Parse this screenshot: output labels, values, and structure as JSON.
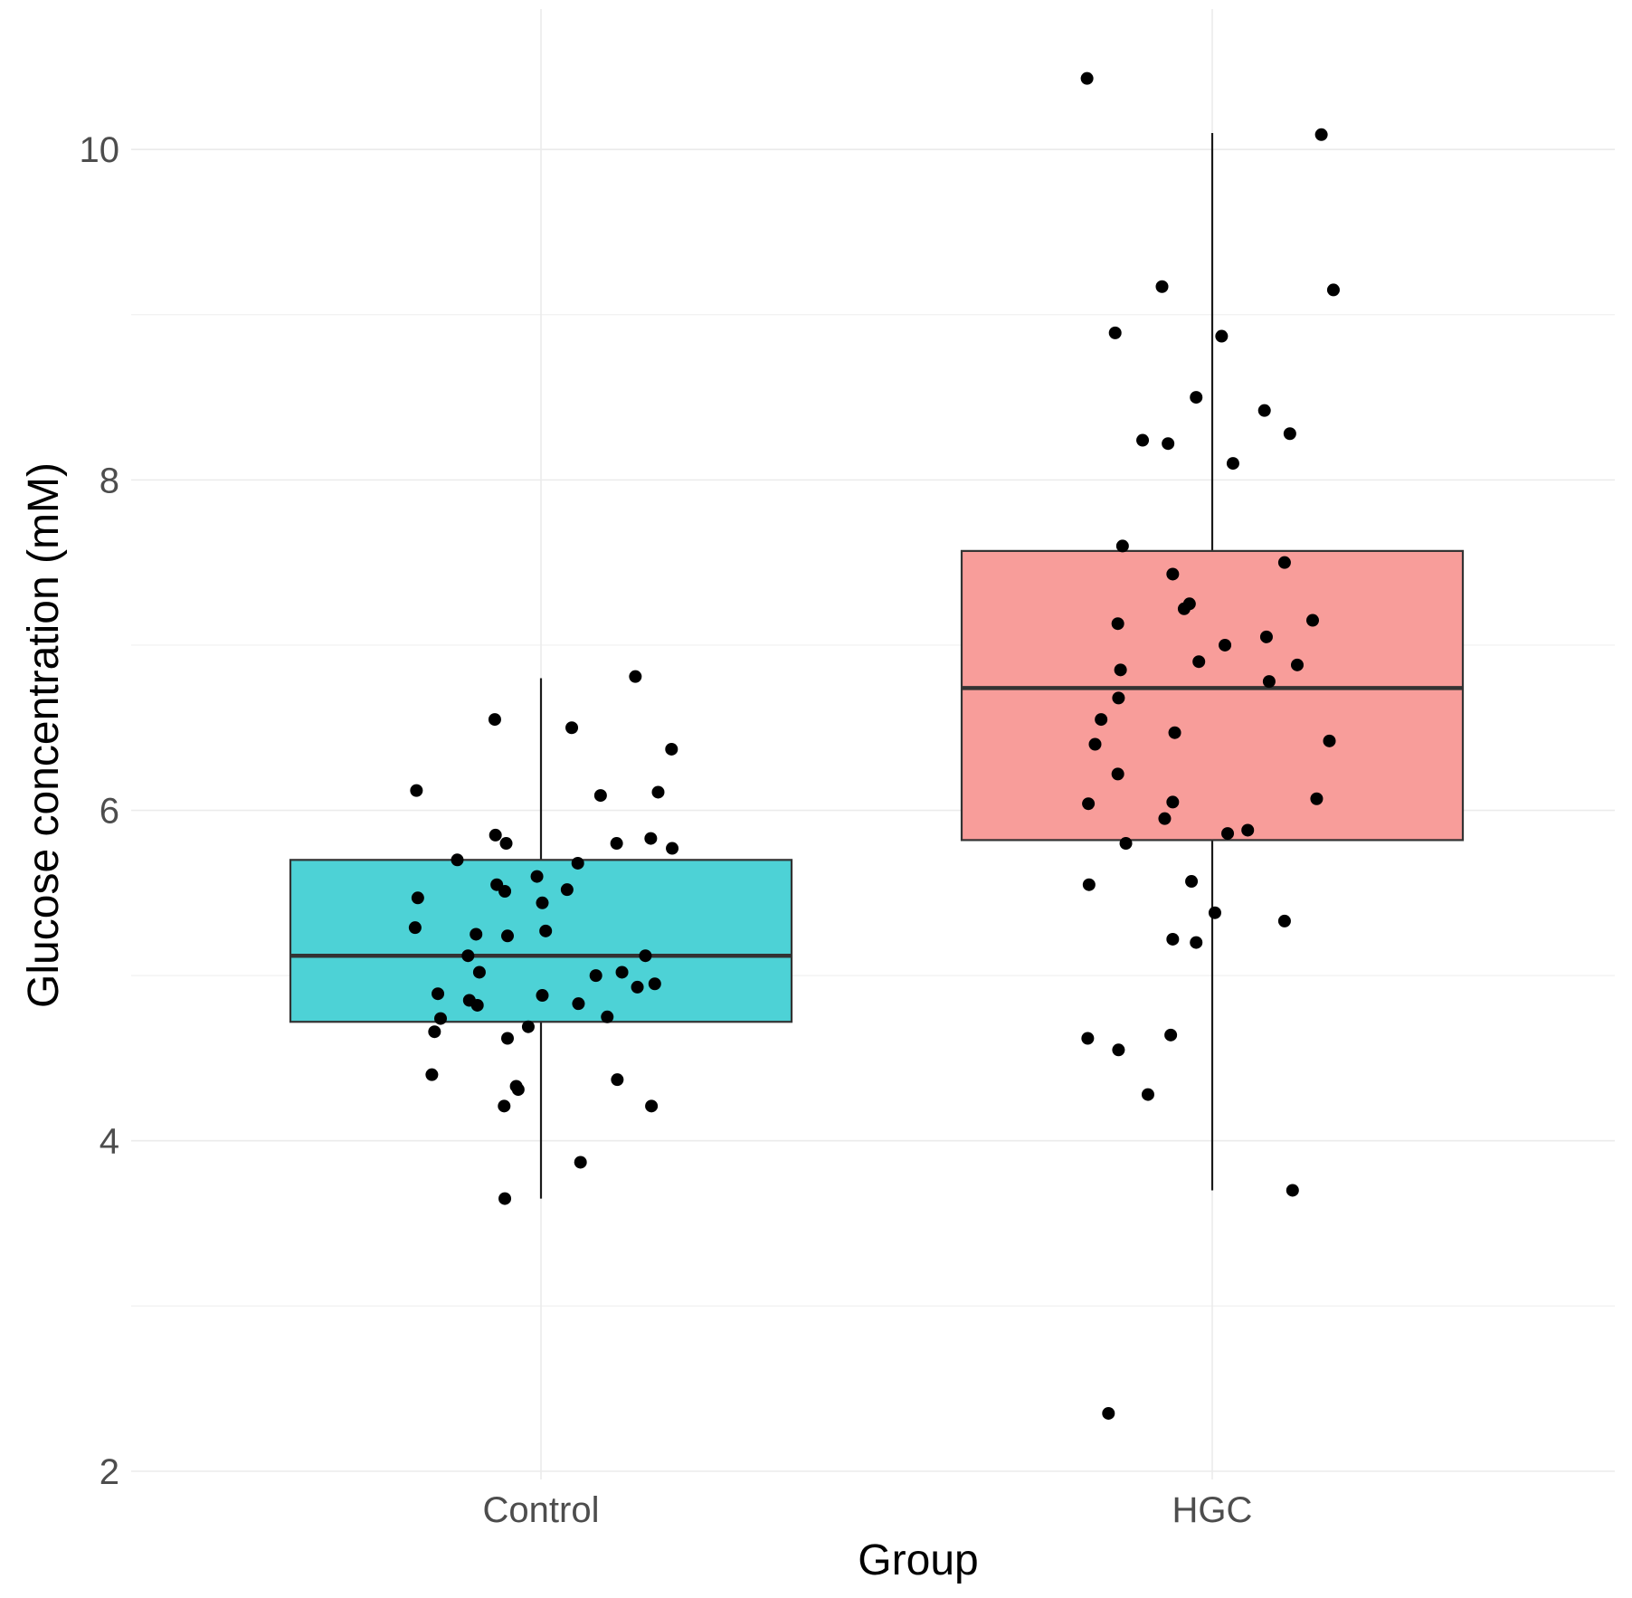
{
  "chart_data": {
    "type": "box",
    "title": "",
    "xlabel": "Group",
    "ylabel": "Glucose concentration (mM)",
    "ylim": [
      1.95,
      10.85
    ],
    "yticks": [
      2,
      4,
      6,
      8,
      10
    ],
    "categories": [
      "Control",
      "HGC"
    ],
    "colors": {
      "Control": "#4dd2d6",
      "HGC": "#f89d9a"
    },
    "boxes": [
      {
        "group": "Control",
        "whisker_low": 3.65,
        "q1": 4.72,
        "median": 5.12,
        "q3": 5.7,
        "whisker_high": 6.8
      },
      {
        "group": "HGC",
        "whisker_low": 3.7,
        "q1": 5.82,
        "median": 6.74,
        "q3": 7.57,
        "whisker_high": 10.1
      }
    ],
    "points": {
      "Control": [
        {
          "x": -0.186,
          "y": 6.12
        },
        {
          "x": -0.184,
          "y": 5.47
        },
        {
          "x": -0.188,
          "y": 5.29
        },
        {
          "x": -0.159,
          "y": 4.66
        },
        {
          "x": -0.163,
          "y": 4.4
        },
        {
          "x": -0.154,
          "y": 4.89
        },
        {
          "x": -0.15,
          "y": 4.74
        },
        {
          "x": -0.125,
          "y": 5.7
        },
        {
          "x": -0.109,
          "y": 5.12
        },
        {
          "x": -0.107,
          "y": 4.85
        },
        {
          "x": -0.097,
          "y": 5.25
        },
        {
          "x": -0.092,
          "y": 5.02
        },
        {
          "x": -0.095,
          "y": 4.82
        },
        {
          "x": -0.069,
          "y": 6.55
        },
        {
          "x": -0.068,
          "y": 5.85
        },
        {
          "x": -0.066,
          "y": 5.55
        },
        {
          "x": -0.052,
          "y": 5.8
        },
        {
          "x": -0.054,
          "y": 5.51
        },
        {
          "x": -0.05,
          "y": 5.24
        },
        {
          "x": -0.05,
          "y": 4.62
        },
        {
          "x": -0.055,
          "y": 4.21
        },
        {
          "x": -0.054,
          "y": 3.65
        },
        {
          "x": -0.037,
          "y": 4.33
        },
        {
          "x": -0.034,
          "y": 4.31
        },
        {
          "x": -0.019,
          "y": 4.69
        },
        {
          "x": -0.006,
          "y": 5.6
        },
        {
          "x": 0.002,
          "y": 5.44
        },
        {
          "x": 0.002,
          "y": 4.88
        },
        {
          "x": 0.007,
          "y": 5.27
        },
        {
          "x": 0.039,
          "y": 5.52
        },
        {
          "x": 0.046,
          "y": 6.5
        },
        {
          "x": 0.055,
          "y": 5.68
        },
        {
          "x": 0.056,
          "y": 4.83
        },
        {
          "x": 0.059,
          "y": 3.87
        },
        {
          "x": 0.082,
          "y": 5.0
        },
        {
          "x": 0.089,
          "y": 6.09
        },
        {
          "x": 0.099,
          "y": 4.75
        },
        {
          "x": 0.113,
          "y": 5.8
        },
        {
          "x": 0.114,
          "y": 4.37
        },
        {
          "x": 0.121,
          "y": 5.02
        },
        {
          "x": 0.141,
          "y": 6.81
        },
        {
          "x": 0.144,
          "y": 4.93
        },
        {
          "x": 0.156,
          "y": 5.12
        },
        {
          "x": 0.164,
          "y": 5.83
        },
        {
          "x": 0.165,
          "y": 4.21
        },
        {
          "x": 0.17,
          "y": 4.95
        },
        {
          "x": 0.175,
          "y": 6.11
        },
        {
          "x": 0.195,
          "y": 6.37
        },
        {
          "x": 0.196,
          "y": 5.77
        }
      ],
      "HGC": [
        {
          "x": -0.187,
          "y": 10.43
        },
        {
          "x": -0.185,
          "y": 6.04
        },
        {
          "x": -0.184,
          "y": 5.55
        },
        {
          "x": -0.186,
          "y": 4.62
        },
        {
          "x": -0.175,
          "y": 6.4
        },
        {
          "x": -0.166,
          "y": 6.55
        },
        {
          "x": -0.155,
          "y": 2.35
        },
        {
          "x": -0.145,
          "y": 8.89
        },
        {
          "x": -0.141,
          "y": 7.13
        },
        {
          "x": -0.14,
          "y": 6.68
        },
        {
          "x": -0.141,
          "y": 6.22
        },
        {
          "x": -0.14,
          "y": 4.55
        },
        {
          "x": -0.137,
          "y": 6.85
        },
        {
          "x": -0.134,
          "y": 7.6
        },
        {
          "x": -0.129,
          "y": 5.8
        },
        {
          "x": -0.104,
          "y": 8.24
        },
        {
          "x": -0.096,
          "y": 4.28
        },
        {
          "x": -0.075,
          "y": 9.17
        },
        {
          "x": -0.071,
          "y": 5.95
        },
        {
          "x": -0.066,
          "y": 8.22
        },
        {
          "x": -0.062,
          "y": 4.64
        },
        {
          "x": -0.059,
          "y": 5.22
        },
        {
          "x": -0.059,
          "y": 7.43
        },
        {
          "x": -0.059,
          "y": 6.05
        },
        {
          "x": -0.056,
          "y": 6.47
        },
        {
          "x": -0.042,
          "y": 7.22
        },
        {
          "x": -0.034,
          "y": 7.25
        },
        {
          "x": -0.031,
          "y": 5.57
        },
        {
          "x": -0.024,
          "y": 5.2
        },
        {
          "x": -0.024,
          "y": 8.5
        },
        {
          "x": -0.02,
          "y": 6.9
        },
        {
          "x": 0.004,
          "y": 5.38
        },
        {
          "x": 0.014,
          "y": 8.87
        },
        {
          "x": 0.019,
          "y": 7.0
        },
        {
          "x": 0.023,
          "y": 5.86
        },
        {
          "x": 0.031,
          "y": 8.1
        },
        {
          "x": 0.053,
          "y": 5.88
        },
        {
          "x": 0.078,
          "y": 8.42
        },
        {
          "x": 0.081,
          "y": 7.05
        },
        {
          "x": 0.085,
          "y": 6.78
        },
        {
          "x": 0.108,
          "y": 7.5
        },
        {
          "x": 0.108,
          "y": 5.33
        },
        {
          "x": 0.116,
          "y": 8.28
        },
        {
          "x": 0.12,
          "y": 3.7
        },
        {
          "x": 0.127,
          "y": 6.88
        },
        {
          "x": 0.15,
          "y": 7.15
        },
        {
          "x": 0.156,
          "y": 6.07
        },
        {
          "x": 0.163,
          "y": 10.09
        },
        {
          "x": 0.175,
          "y": 6.42
        },
        {
          "x": 0.181,
          "y": 9.15
        }
      ]
    }
  }
}
